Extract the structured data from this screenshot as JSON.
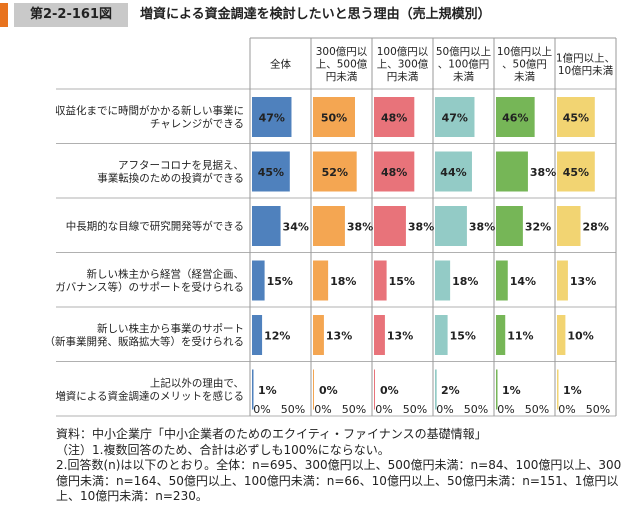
{
  "header": {
    "figure_number": "第2-2-161図",
    "title": "増資による資金調達を検討したいと思う理由（売上規模別）"
  },
  "chart_data": {
    "type": "bar",
    "orientation": "horizontal",
    "panels": [
      {
        "name": [
          "全体"
        ],
        "color": "#4f81bd"
      },
      {
        "name": [
          "300億円以",
          "上、500億",
          "円未満"
        ],
        "color": "#f4a652"
      },
      {
        "name": [
          "100億円以",
          "上、300億",
          "円未満"
        ],
        "color": "#e8737a"
      },
      {
        "name": [
          "50億円以上",
          "、100億円",
          "未満"
        ],
        "color": "#93cbc6"
      },
      {
        "name": [
          "10億円以上",
          "、50億円",
          "未満"
        ],
        "color": "#76b657"
      },
      {
        "name": [
          "1億円以上、",
          "10億円未満"
        ],
        "color": "#f2d472"
      }
    ],
    "categories": [
      [
        "収益化までに時間がかかる新しい事業に",
        "チャレンジができる"
      ],
      [
        "アフターコロナを見据え、",
        "事業転換のための投資ができる"
      ],
      [
        "中長期的な目線で研究開発等ができる"
      ],
      [
        "新しい株主から経営（経営企画、",
        "ガバナンス等）のサポートを受けられる"
      ],
      [
        "新しい株主から事業のサポート",
        "（新事業開発、販路拡大等）を受けられる"
      ],
      [
        "上記以外の理由で、",
        "増資による資金調達のメリットを感じる"
      ]
    ],
    "values": [
      [
        47,
        50,
        48,
        47,
        46,
        45
      ],
      [
        45,
        52,
        48,
        44,
        38,
        45
      ],
      [
        34,
        38,
        38,
        38,
        32,
        28
      ],
      [
        15,
        18,
        15,
        18,
        14,
        13
      ],
      [
        12,
        13,
        13,
        15,
        11,
        10
      ],
      [
        1,
        0,
        0,
        2,
        1,
        1
      ]
    ],
    "value_labels": [
      [
        "47%",
        "50%",
        "48%",
        "47%",
        "46%",
        "45%"
      ],
      [
        "45%",
        "52%",
        "48%",
        "44%",
        "38%",
        "45%"
      ],
      [
        "34%",
        "38%",
        "38%",
        "38%",
        "32%",
        "28%"
      ],
      [
        "15%",
        "18%",
        "15%",
        "18%",
        "14%",
        "13%"
      ],
      [
        "12%",
        "13%",
        "13%",
        "15%",
        "11%",
        "10%"
      ],
      [
        "1%",
        "0%",
        "0%",
        "2%",
        "1%",
        "1%"
      ]
    ],
    "x_tick_labels": [
      "0%",
      "50%"
    ],
    "xlim": [
      0,
      70
    ]
  },
  "notes": {
    "source": "資料：中小企業庁「中小企業者のためのエクイティ・ファイナンスの基礎情報」",
    "note1": "（注）1.複数回答のため、合計は必ずしも100%にならない。",
    "note2": "2.回答数(n)は以下のとおり。全体：n=695、300億円以上、500億円未満：n=84、100億円以上、300億円未満：n=164、50億円以上、100億円未満：n=66、10億円以上、50億円未満：n=151、1億円以上、10億円未満：n=230。"
  }
}
